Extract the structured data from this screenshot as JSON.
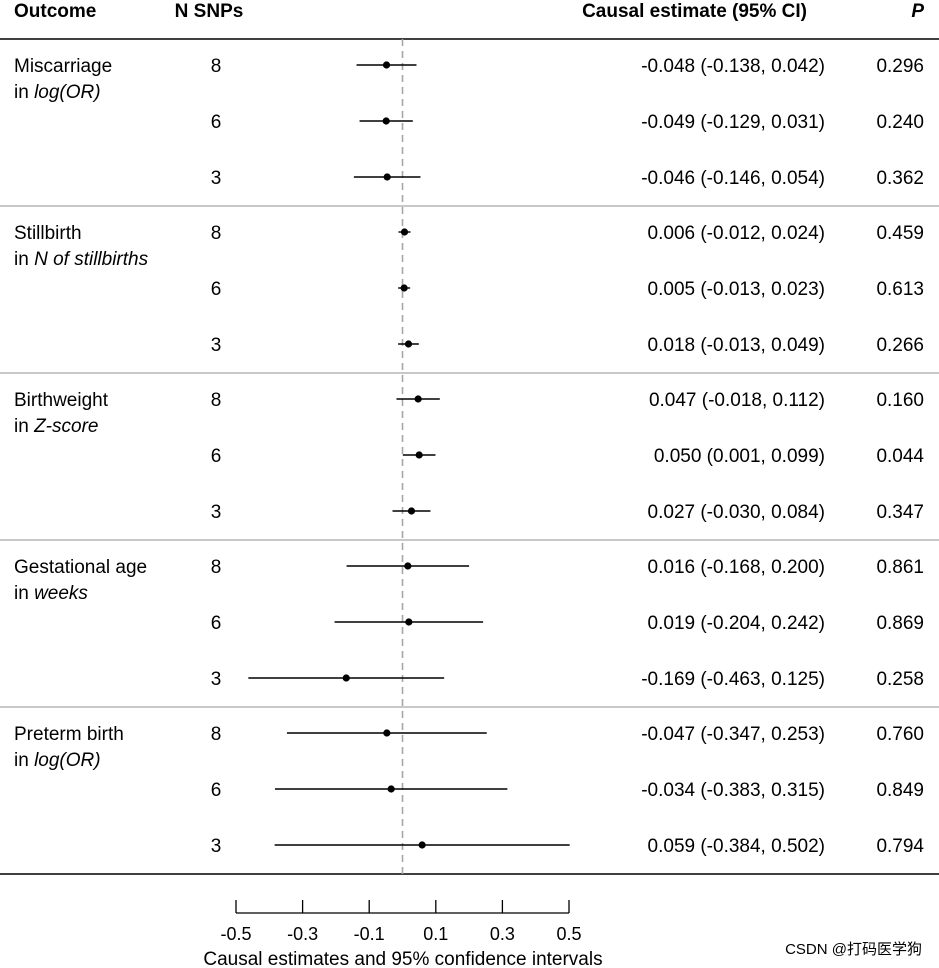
{
  "headers": {
    "outcome": "Outcome",
    "nsnps": "N SNPs",
    "estimate": "Causal estimate (95% CI)",
    "p": "P"
  },
  "chart_data": {
    "type": "forest",
    "xlabel": "Causal estimates and 95% confidence intervals",
    "xlim": [
      -0.5,
      0.5
    ],
    "ticks": [
      -0.5,
      -0.3,
      -0.1,
      0.1,
      0.3,
      0.5
    ],
    "tick_labels": [
      "-0.5",
      "-0.3",
      "-0.1",
      "0.1",
      "0.3",
      "0.5"
    ],
    "reference_line": 0,
    "groups": [
      {
        "line1": "Miscarriage",
        "line2_prefix": "in ",
        "line2_italic": "log(OR)",
        "rows": [
          {
            "n": "8",
            "est": -0.048,
            "lo": -0.138,
            "hi": 0.042,
            "ci_text": "-0.048 (-0.138, 0.042)",
            "p": "0.296"
          },
          {
            "n": "6",
            "est": -0.049,
            "lo": -0.129,
            "hi": 0.031,
            "ci_text": "-0.049 (-0.129, 0.031)",
            "p": "0.240"
          },
          {
            "n": "3",
            "est": -0.046,
            "lo": -0.146,
            "hi": 0.054,
            "ci_text": "-0.046 (-0.146, 0.054)",
            "p": "0.362"
          }
        ]
      },
      {
        "line1": "Stillbirth",
        "line2_prefix": "in ",
        "line2_italic": "N of stillbirths",
        "rows": [
          {
            "n": "8",
            "est": 0.006,
            "lo": -0.012,
            "hi": 0.024,
            "ci_text": "0.006 (-0.012, 0.024)",
            "p": "0.459"
          },
          {
            "n": "6",
            "est": 0.005,
            "lo": -0.013,
            "hi": 0.023,
            "ci_text": "0.005 (-0.013, 0.023)",
            "p": "0.613"
          },
          {
            "n": "3",
            "est": 0.018,
            "lo": -0.013,
            "hi": 0.049,
            "ci_text": "0.018 (-0.013, 0.049)",
            "p": "0.266"
          }
        ]
      },
      {
        "line1": "Birthweight",
        "line2_prefix": "in ",
        "line2_italic": "Z-score",
        "rows": [
          {
            "n": "8",
            "est": 0.047,
            "lo": -0.018,
            "hi": 0.112,
            "ci_text": "0.047 (-0.018, 0.112)",
            "p": "0.160"
          },
          {
            "n": "6",
            "est": 0.05,
            "lo": 0.001,
            "hi": 0.099,
            "ci_text": "0.050 (0.001, 0.099)",
            "p": "0.044"
          },
          {
            "n": "3",
            "est": 0.027,
            "lo": -0.03,
            "hi": 0.084,
            "ci_text": "0.027 (-0.030, 0.084)",
            "p": "0.347"
          }
        ]
      },
      {
        "line1": "Gestational age",
        "line2_prefix": "in ",
        "line2_italic": "weeks",
        "rows": [
          {
            "n": "8",
            "est": 0.016,
            "lo": -0.168,
            "hi": 0.2,
            "ci_text": "0.016 (-0.168, 0.200)",
            "p": "0.861"
          },
          {
            "n": "6",
            "est": 0.019,
            "lo": -0.204,
            "hi": 0.242,
            "ci_text": "0.019 (-0.204, 0.242)",
            "p": "0.869"
          },
          {
            "n": "3",
            "est": -0.169,
            "lo": -0.463,
            "hi": 0.125,
            "ci_text": "-0.169 (-0.463, 0.125)",
            "p": "0.258"
          }
        ]
      },
      {
        "line1": "Preterm birth",
        "line2_prefix": "in ",
        "line2_italic": "log(OR)",
        "rows": [
          {
            "n": "8",
            "est": -0.047,
            "lo": -0.347,
            "hi": 0.253,
            "ci_text": "-0.047 (-0.347, 0.253)",
            "p": "0.760"
          },
          {
            "n": "6",
            "est": -0.034,
            "lo": -0.383,
            "hi": 0.315,
            "ci_text": "-0.034 (-0.383, 0.315)",
            "p": "0.849"
          },
          {
            "n": "3",
            "est": 0.059,
            "lo": -0.384,
            "hi": 0.502,
            "ci_text": "0.059 (-0.384, 0.502)",
            "p": "0.794"
          }
        ]
      }
    ]
  },
  "watermark": "CSDN @打码医学狗",
  "colors": {
    "ink": "#000000",
    "separator": "#b5b5b5",
    "reference": "#a6a6a6",
    "watermark": "#9a9a9a"
  }
}
